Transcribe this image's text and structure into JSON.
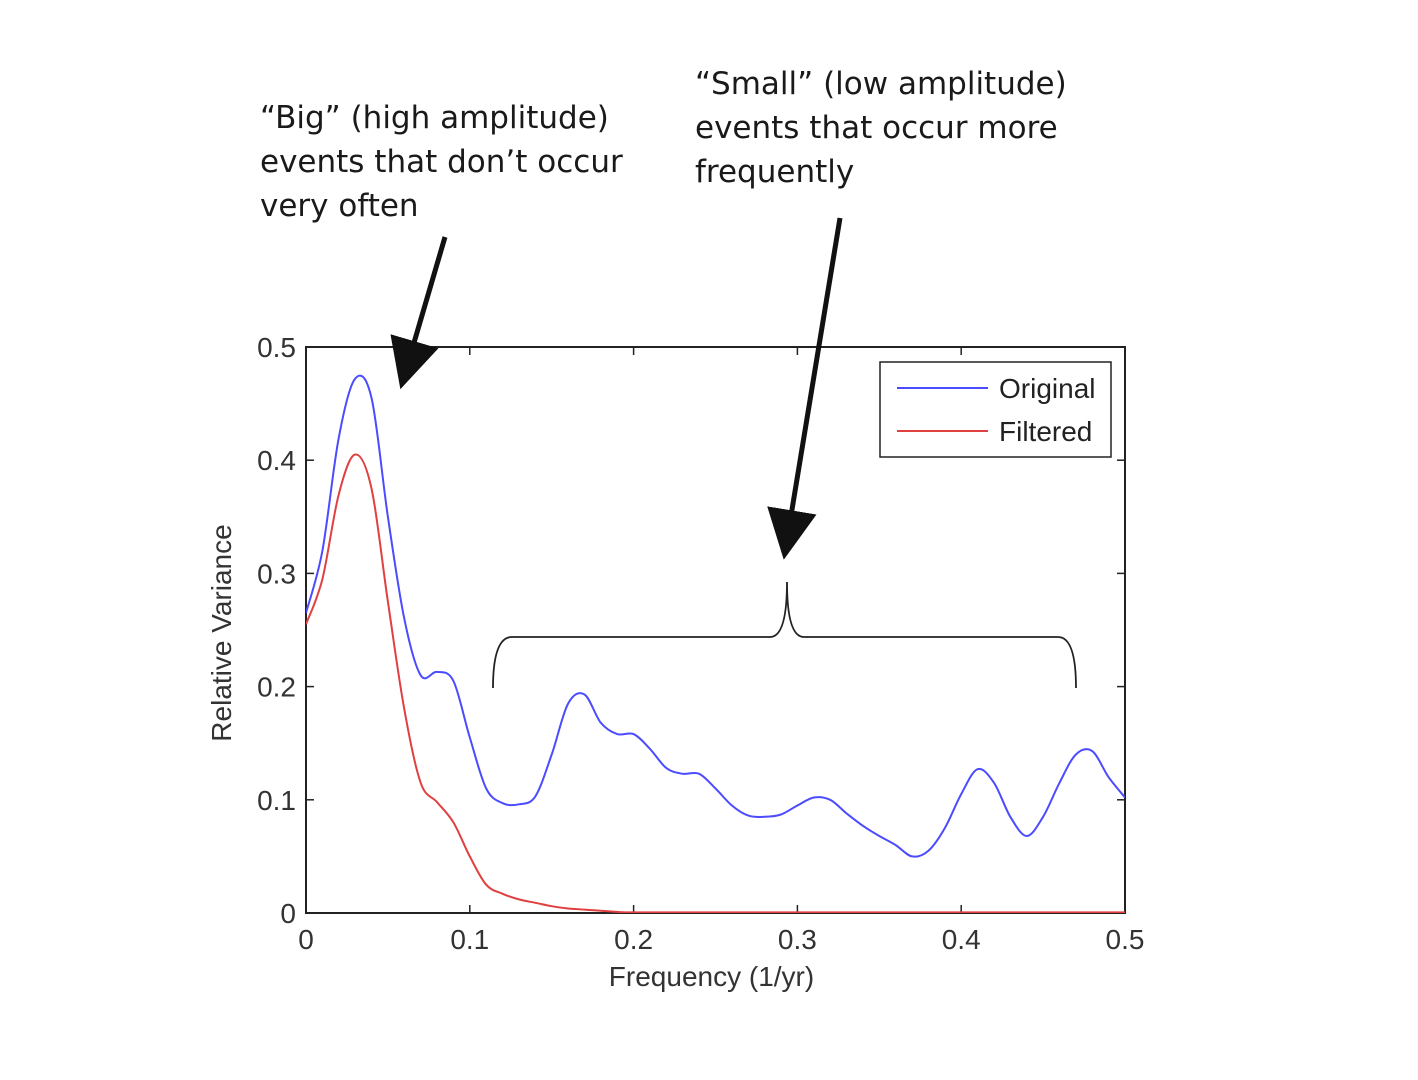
{
  "annotations": {
    "big": [
      "“Big” (high amplitude)",
      "events that don’t occur",
      "very often"
    ],
    "small": [
      "“Small” (low amplitude)",
      "events that occur more",
      "frequently"
    ]
  },
  "chart_data": {
    "type": "line",
    "title": "",
    "xlabel": "Frequency (1/yr)",
    "ylabel": "Relative Variance",
    "xlim": [
      0,
      0.5
    ],
    "ylim": [
      0,
      0.5
    ],
    "xticks": [
      0,
      0.1,
      0.2,
      0.3,
      0.4,
      0.5
    ],
    "xtick_labels": [
      "0",
      "0.1",
      "0.2",
      "0.3",
      "0.4",
      "0.5"
    ],
    "yticks": [
      0,
      0.1,
      0.2,
      0.3,
      0.4,
      0.5
    ],
    "ytick_labels": [
      "0",
      "0.1",
      "0.2",
      "0.3",
      "0.4",
      "0.5"
    ],
    "grid": false,
    "legend": "top-right",
    "series": [
      {
        "name": "Original",
        "color": "#4b4bff",
        "x": [
          0,
          0.01,
          0.02,
          0.03,
          0.04,
          0.05,
          0.06,
          0.07,
          0.08,
          0.09,
          0.1,
          0.11,
          0.12,
          0.13,
          0.14,
          0.15,
          0.16,
          0.17,
          0.18,
          0.19,
          0.2,
          0.21,
          0.22,
          0.23,
          0.24,
          0.25,
          0.26,
          0.27,
          0.28,
          0.29,
          0.3,
          0.31,
          0.32,
          0.33,
          0.34,
          0.35,
          0.36,
          0.37,
          0.38,
          0.39,
          0.4,
          0.41,
          0.42,
          0.43,
          0.44,
          0.45,
          0.46,
          0.47,
          0.48,
          0.49,
          0.5
        ],
        "values": [
          0.265,
          0.32,
          0.42,
          0.472,
          0.455,
          0.35,
          0.26,
          0.21,
          0.213,
          0.205,
          0.155,
          0.11,
          0.097,
          0.096,
          0.103,
          0.14,
          0.185,
          0.193,
          0.168,
          0.158,
          0.158,
          0.145,
          0.128,
          0.123,
          0.123,
          0.11,
          0.095,
          0.086,
          0.085,
          0.087,
          0.095,
          0.102,
          0.1,
          0.088,
          0.077,
          0.068,
          0.06,
          0.05,
          0.055,
          0.075,
          0.105,
          0.127,
          0.115,
          0.085,
          0.068,
          0.085,
          0.115,
          0.14,
          0.143,
          0.12,
          0.102
        ]
      },
      {
        "name": "Filtered",
        "color": "#e04040",
        "x": [
          0,
          0.01,
          0.02,
          0.03,
          0.04,
          0.05,
          0.06,
          0.07,
          0.08,
          0.09,
          0.1,
          0.11,
          0.12,
          0.13,
          0.14,
          0.15,
          0.16,
          0.17,
          0.18,
          0.19,
          0.2,
          0.25,
          0.3,
          0.35,
          0.4,
          0.45,
          0.5
        ],
        "values": [
          0.255,
          0.295,
          0.37,
          0.405,
          0.375,
          0.275,
          0.18,
          0.115,
          0.098,
          0.08,
          0.05,
          0.025,
          0.017,
          0.012,
          0.009,
          0.006,
          0.004,
          0.003,
          0.002,
          0.001,
          0.0005,
          0.0005,
          0.0005,
          0.0005,
          0.0005,
          0.0005,
          0.0005
        ]
      }
    ]
  }
}
